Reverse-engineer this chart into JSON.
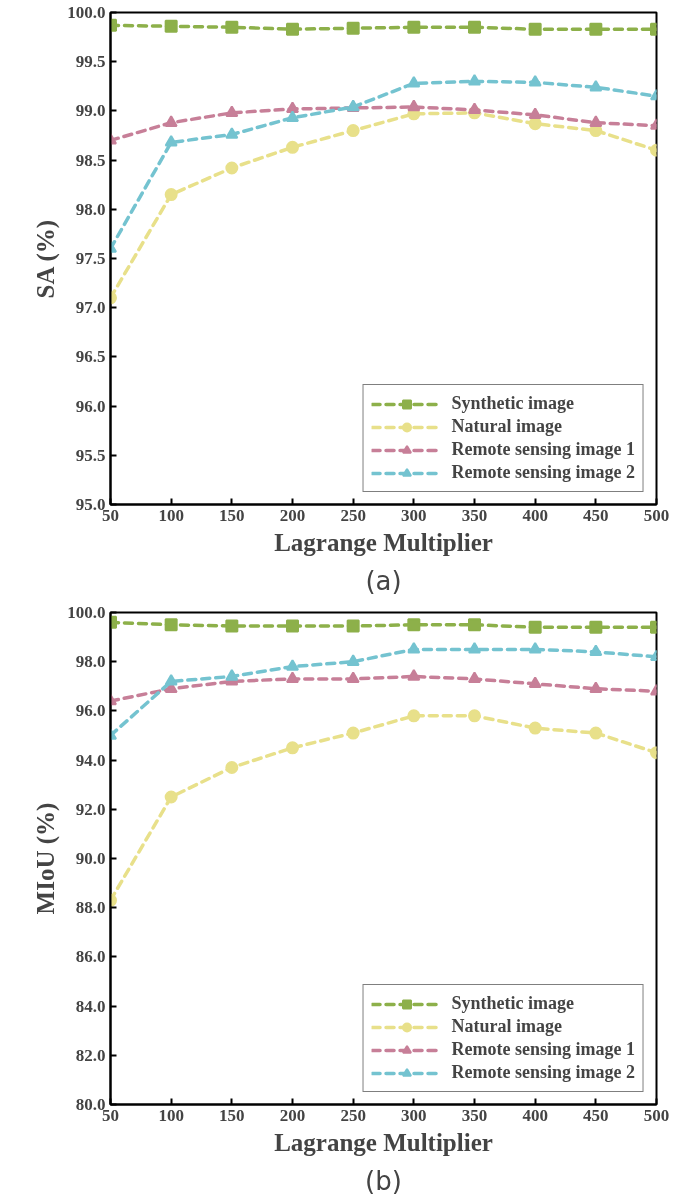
{
  "chart_data": [
    {
      "type": "line",
      "xlabel": "Lagrange Multiplier",
      "ylabel": "SA (%)",
      "annotations": [
        "(a)"
      ],
      "x": [
        50,
        100,
        150,
        200,
        250,
        300,
        350,
        400,
        450,
        500
      ],
      "xlim": [
        50,
        500
      ],
      "xticks": [
        50,
        100,
        150,
        200,
        250,
        300,
        350,
        400,
        450,
        500
      ],
      "ylim": [
        95,
        100
      ],
      "yticks": [
        {
          "value": 95,
          "label": "95.0"
        },
        95.5,
        {
          "value": 96,
          "label": "96.0"
        },
        96.5,
        {
          "value": 97,
          "label": "97.0"
        },
        97.5,
        {
          "value": 98,
          "label": "98.0"
        },
        98.5,
        {
          "value": 99,
          "label": "99.0"
        },
        99.5,
        {
          "value": 100,
          "label": "100.0"
        }
      ],
      "grid": false,
      "legend": "bottom right",
      "line_style": "dashed",
      "series": [
        {
          "name": "Synthetic image",
          "color": "#8db04a",
          "marker": "square",
          "values": [
            99.87,
            99.86,
            99.85,
            99.83,
            99.84,
            99.85,
            99.85,
            99.83,
            99.83,
            99.83
          ]
        },
        {
          "name": "Natural image",
          "color": "#e8e08a",
          "marker": "circle",
          "values": [
            97.1,
            98.15,
            98.42,
            98.63,
            98.8,
            98.97,
            98.98,
            98.87,
            98.8,
            98.6
          ]
        },
        {
          "name": "Remote sensing image 1",
          "color": "#c77f98",
          "marker": "triangle",
          "values": [
            98.7,
            98.88,
            98.98,
            99.02,
            99.03,
            99.04,
            99.01,
            98.96,
            98.88,
            98.85
          ]
        },
        {
          "name": "Remote sensing image 2",
          "color": "#74c3d0",
          "marker": "triangle",
          "values": [
            97.6,
            98.68,
            98.76,
            98.93,
            99.04,
            99.28,
            99.3,
            99.29,
            99.24,
            99.15
          ]
        }
      ]
    },
    {
      "type": "line",
      "xlabel": "Lagrange Multiplier",
      "ylabel": "MIoU (%)",
      "annotations": [
        "(b)"
      ],
      "x": [
        50,
        100,
        150,
        200,
        250,
        300,
        350,
        400,
        450,
        500
      ],
      "xlim": [
        50,
        500
      ],
      "xticks": [
        50,
        100,
        150,
        200,
        250,
        300,
        350,
        400,
        450,
        500
      ],
      "ylim": [
        80,
        100
      ],
      "yticks": [
        {
          "value": 80,
          "label": "80.0"
        },
        {
          "value": 82,
          "label": "82.0"
        },
        {
          "value": 84,
          "label": "84.0"
        },
        {
          "value": 86,
          "label": "86.0"
        },
        {
          "value": 88,
          "label": "88.0"
        },
        {
          "value": 90,
          "label": "90.0"
        },
        {
          "value": 92,
          "label": "92.0"
        },
        {
          "value": 94,
          "label": "94.0"
        },
        {
          "value": 96,
          "label": "96.0"
        },
        {
          "value": 98,
          "label": "98.0"
        },
        {
          "value": 100,
          "label": "100.0"
        }
      ],
      "grid": false,
      "legend": "bottom right",
      "line_style": "dashed",
      "series": [
        {
          "name": "Synthetic image",
          "color": "#8db04a",
          "marker": "square",
          "values": [
            99.6,
            99.5,
            99.45,
            99.45,
            99.45,
            99.5,
            99.5,
            99.4,
            99.4,
            99.4
          ]
        },
        {
          "name": "Natural image",
          "color": "#e8e08a",
          "marker": "circle",
          "values": [
            88.3,
            92.5,
            93.7,
            94.5,
            95.1,
            95.8,
            95.8,
            95.3,
            95.1,
            94.3
          ]
        },
        {
          "name": "Remote sensing image 1",
          "color": "#c77f98",
          "marker": "triangle",
          "values": [
            96.4,
            96.9,
            97.2,
            97.3,
            97.3,
            97.4,
            97.3,
            97.1,
            96.9,
            96.8
          ]
        },
        {
          "name": "Remote sensing image 2",
          "color": "#74c3d0",
          "marker": "triangle",
          "values": [
            95.0,
            97.2,
            97.4,
            97.8,
            98.0,
            98.5,
            98.5,
            98.5,
            98.4,
            98.2
          ]
        }
      ]
    }
  ]
}
